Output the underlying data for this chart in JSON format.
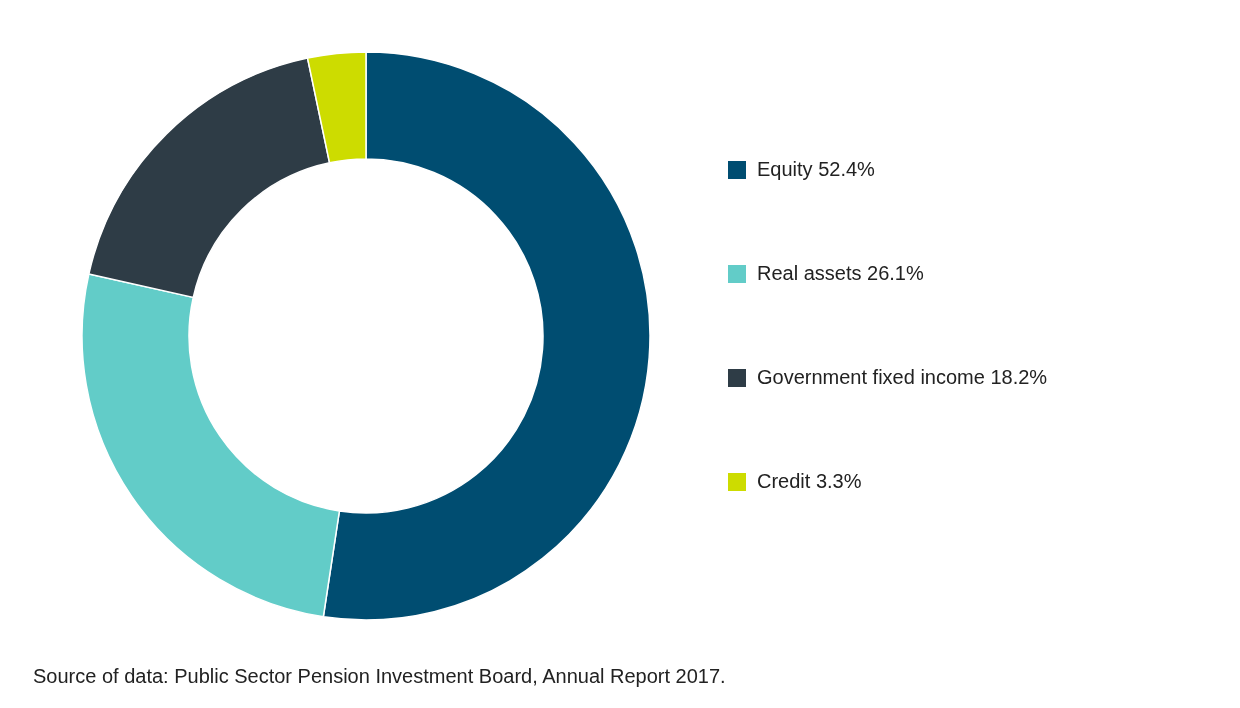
{
  "chart_data": {
    "type": "donut",
    "categories": [
      "Equity",
      "Real assets",
      "Government fixed income",
      "Credit"
    ],
    "values": [
      52.4,
      26.1,
      18.2,
      3.3
    ],
    "value_labels": [
      "52.4%",
      "26.1%",
      "18.2%",
      "3.3%"
    ],
    "colors": [
      "#004d71",
      "#62ccc8",
      "#2e3c46",
      "#cddc00"
    ],
    "legend": "right",
    "annotations": [
      "Source of data: Public Sector Pension Investment Board, Annual Report 2017."
    ]
  }
}
